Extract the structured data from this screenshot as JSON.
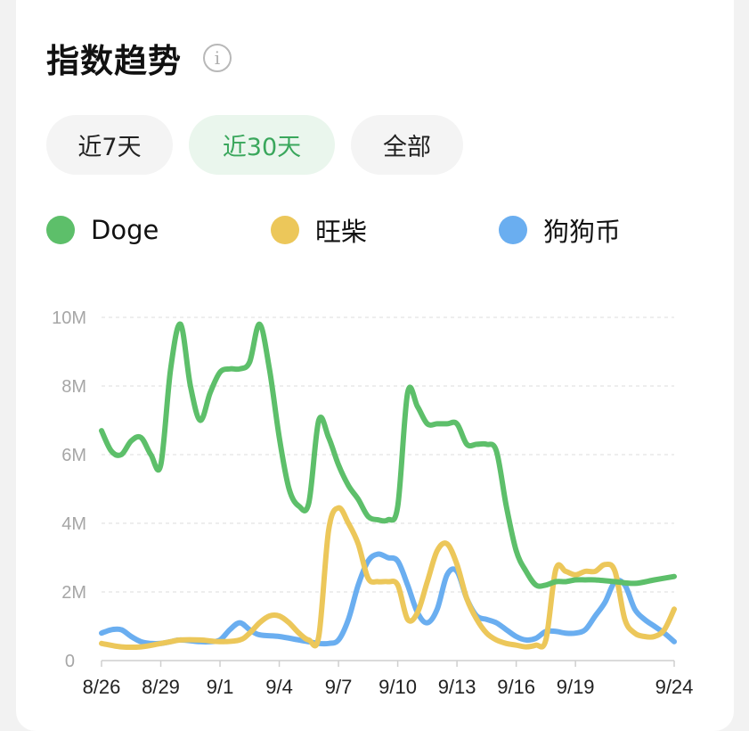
{
  "header": {
    "title": "指数趋势",
    "info_icon": "info-icon"
  },
  "tabs": [
    {
      "label": "近7天",
      "active": false
    },
    {
      "label": "近30天",
      "active": true
    },
    {
      "label": "全部",
      "active": false
    }
  ],
  "colors": {
    "green": "#5dbf6a",
    "yellow": "#ecc75a",
    "blue": "#6aaef0",
    "active_tab_text": "#3aa75c"
  },
  "chart_data": {
    "type": "line",
    "title": "",
    "xlabel": "",
    "ylabel": "",
    "ylim": [
      0,
      10000000
    ],
    "ytick_labels": [
      "0",
      "2M",
      "4M",
      "6M",
      "8M",
      "10M"
    ],
    "ytick_values": [
      0,
      2000000,
      4000000,
      6000000,
      8000000,
      10000000
    ],
    "xtick_labels": [
      "8/26",
      "8/29",
      "9/1",
      "9/4",
      "9/7",
      "9/10",
      "9/13",
      "9/16",
      "9/19",
      "9/24"
    ],
    "xtick_days": [
      0,
      3,
      6,
      9,
      12,
      15,
      18,
      21,
      24,
      29
    ],
    "grid": true,
    "legend_position": "top",
    "series": [
      {
        "name": "Doge",
        "color": "#5dbf6a",
        "points": [
          [
            0,
            6.7
          ],
          [
            0.5,
            6.1
          ],
          [
            1,
            6.0
          ],
          [
            1.5,
            6.4
          ],
          [
            2,
            6.5
          ],
          [
            2.5,
            6.0
          ],
          [
            3,
            5.7
          ],
          [
            3.5,
            8.5
          ],
          [
            4,
            9.8
          ],
          [
            4.5,
            8.0
          ],
          [
            5,
            7.0
          ],
          [
            5.5,
            7.8
          ],
          [
            6,
            8.4
          ],
          [
            6.5,
            8.5
          ],
          [
            7,
            8.5
          ],
          [
            7.5,
            8.7
          ],
          [
            8,
            9.8
          ],
          [
            8.5,
            8.5
          ],
          [
            9,
            6.5
          ],
          [
            9.5,
            5.0
          ],
          [
            10,
            4.5
          ],
          [
            10.5,
            4.6
          ],
          [
            11,
            7.0
          ],
          [
            11.5,
            6.5
          ],
          [
            12,
            5.7
          ],
          [
            12.5,
            5.1
          ],
          [
            13,
            4.7
          ],
          [
            13.5,
            4.2
          ],
          [
            14,
            4.1
          ],
          [
            14.5,
            4.1
          ],
          [
            15,
            4.5
          ],
          [
            15.5,
            7.8
          ],
          [
            16,
            7.4
          ],
          [
            16.5,
            6.9
          ],
          [
            17,
            6.9
          ],
          [
            17.5,
            6.9
          ],
          [
            18,
            6.9
          ],
          [
            18.5,
            6.3
          ],
          [
            19,
            6.3
          ],
          [
            19.5,
            6.3
          ],
          [
            20,
            6.1
          ],
          [
            20.5,
            4.5
          ],
          [
            21,
            3.2
          ],
          [
            21.5,
            2.6
          ],
          [
            22,
            2.2
          ],
          [
            22.5,
            2.2
          ],
          [
            23,
            2.3
          ],
          [
            23.5,
            2.3
          ],
          [
            24,
            2.35
          ],
          [
            24.5,
            2.35
          ],
          [
            25,
            2.35
          ],
          [
            26,
            2.3
          ],
          [
            27,
            2.25
          ],
          [
            28,
            2.35
          ],
          [
            29,
            2.45
          ]
        ]
      },
      {
        "name": "旺柴",
        "color": "#ecc75a",
        "points": [
          [
            0,
            0.5
          ],
          [
            1,
            0.4
          ],
          [
            2,
            0.4
          ],
          [
            3,
            0.5
          ],
          [
            3.5,
            0.55
          ],
          [
            4,
            0.6
          ],
          [
            5,
            0.6
          ],
          [
            6,
            0.55
          ],
          [
            7,
            0.6
          ],
          [
            7.5,
            0.8
          ],
          [
            8,
            1.1
          ],
          [
            8.5,
            1.3
          ],
          [
            9,
            1.3
          ],
          [
            9.5,
            1.1
          ],
          [
            10,
            0.8
          ],
          [
            10.5,
            0.6
          ],
          [
            11,
            0.7
          ],
          [
            11.5,
            3.8
          ],
          [
            12,
            4.45
          ],
          [
            12.5,
            4.0
          ],
          [
            13,
            3.4
          ],
          [
            13.5,
            2.4
          ],
          [
            14,
            2.3
          ],
          [
            14.5,
            2.3
          ],
          [
            15,
            2.2
          ],
          [
            15.5,
            1.2
          ],
          [
            16,
            1.4
          ],
          [
            16.5,
            2.3
          ],
          [
            17,
            3.2
          ],
          [
            17.5,
            3.4
          ],
          [
            18,
            2.8
          ],
          [
            18.5,
            1.8
          ],
          [
            19,
            1.2
          ],
          [
            19.5,
            0.8
          ],
          [
            20,
            0.6
          ],
          [
            20.5,
            0.5
          ],
          [
            21,
            0.45
          ],
          [
            21.5,
            0.4
          ],
          [
            22,
            0.45
          ],
          [
            22.5,
            0.6
          ],
          [
            23,
            2.65
          ],
          [
            23.5,
            2.6
          ],
          [
            24,
            2.5
          ],
          [
            24.5,
            2.6
          ],
          [
            25,
            2.6
          ],
          [
            25.5,
            2.8
          ],
          [
            26,
            2.6
          ],
          [
            26.5,
            1.2
          ],
          [
            27,
            0.8
          ],
          [
            27.5,
            0.7
          ],
          [
            28,
            0.7
          ],
          [
            28.5,
            0.9
          ],
          [
            29,
            1.5
          ]
        ]
      },
      {
        "name": "狗狗币",
        "color": "#6aaef0",
        "points": [
          [
            0,
            0.8
          ],
          [
            0.5,
            0.9
          ],
          [
            1,
            0.9
          ],
          [
            1.5,
            0.7
          ],
          [
            2,
            0.55
          ],
          [
            2.5,
            0.5
          ],
          [
            3,
            0.5
          ],
          [
            3.5,
            0.55
          ],
          [
            4,
            0.6
          ],
          [
            5,
            0.55
          ],
          [
            5.5,
            0.55
          ],
          [
            6,
            0.6
          ],
          [
            6.5,
            0.9
          ],
          [
            7,
            1.1
          ],
          [
            7.5,
            0.9
          ],
          [
            8,
            0.75
          ],
          [
            9,
            0.7
          ],
          [
            10,
            0.6
          ],
          [
            11,
            0.5
          ],
          [
            11.5,
            0.5
          ],
          [
            12,
            0.6
          ],
          [
            12.5,
            1.2
          ],
          [
            13,
            2.2
          ],
          [
            13.5,
            2.9
          ],
          [
            14,
            3.1
          ],
          [
            14.5,
            3.0
          ],
          [
            15,
            2.9
          ],
          [
            15.5,
            2.2
          ],
          [
            16,
            1.4
          ],
          [
            16.5,
            1.1
          ],
          [
            17,
            1.5
          ],
          [
            17.5,
            2.5
          ],
          [
            18,
            2.6
          ],
          [
            18.5,
            1.8
          ],
          [
            19,
            1.3
          ],
          [
            19.5,
            1.2
          ],
          [
            20,
            1.1
          ],
          [
            20.5,
            0.9
          ],
          [
            21,
            0.7
          ],
          [
            21.5,
            0.6
          ],
          [
            22,
            0.65
          ],
          [
            22.5,
            0.85
          ],
          [
            23,
            0.85
          ],
          [
            23.5,
            0.8
          ],
          [
            24,
            0.8
          ],
          [
            24.5,
            0.9
          ],
          [
            25,
            1.3
          ],
          [
            25.5,
            1.7
          ],
          [
            26,
            2.3
          ],
          [
            26.5,
            2.2
          ],
          [
            27,
            1.5
          ],
          [
            27.5,
            1.2
          ],
          [
            28,
            1.0
          ],
          [
            28.5,
            0.8
          ],
          [
            29,
            0.55
          ]
        ]
      }
    ]
  }
}
